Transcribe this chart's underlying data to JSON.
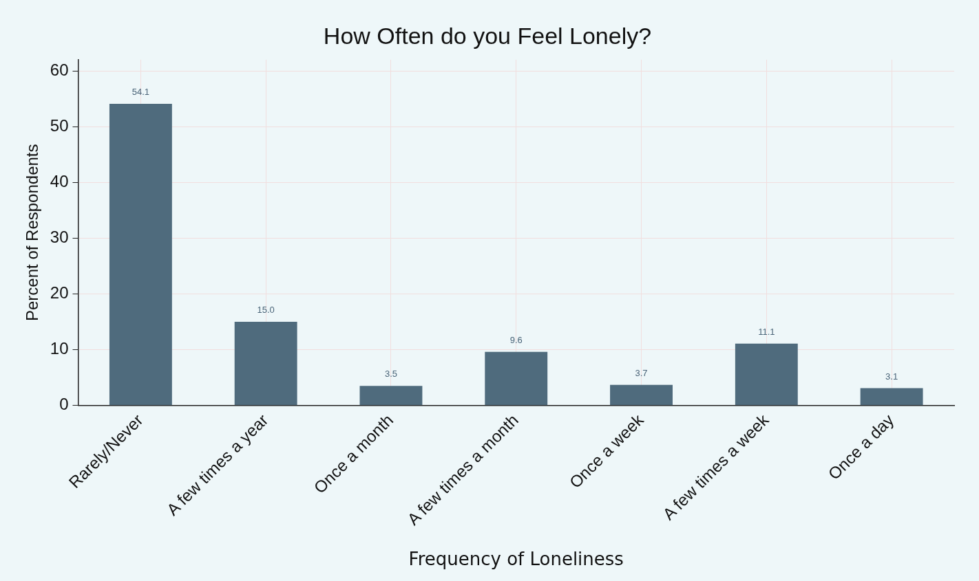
{
  "chart_data": {
    "type": "bar",
    "title": "How Often do you Feel Lonely?",
    "xlabel": "Frequency of Loneliness",
    "ylabel": "Percent of Respondents",
    "categories": [
      "Rarely/Never",
      "A few times a year",
      "Once a month",
      "A few times a month",
      "Once a week",
      "A few times a week",
      "Once a day"
    ],
    "values": [
      54.1,
      15.0,
      3.5,
      9.6,
      3.7,
      11.1,
      3.1
    ],
    "value_labels": [
      "54.1",
      "15.0",
      "3.5",
      "9.6",
      "3.7",
      "11.1",
      "3.1"
    ],
    "color": "#4f6b7d",
    "ylim": [
      0,
      62
    ],
    "yticks": [
      0,
      10,
      20,
      30,
      40,
      50,
      60
    ],
    "grid": true
  }
}
